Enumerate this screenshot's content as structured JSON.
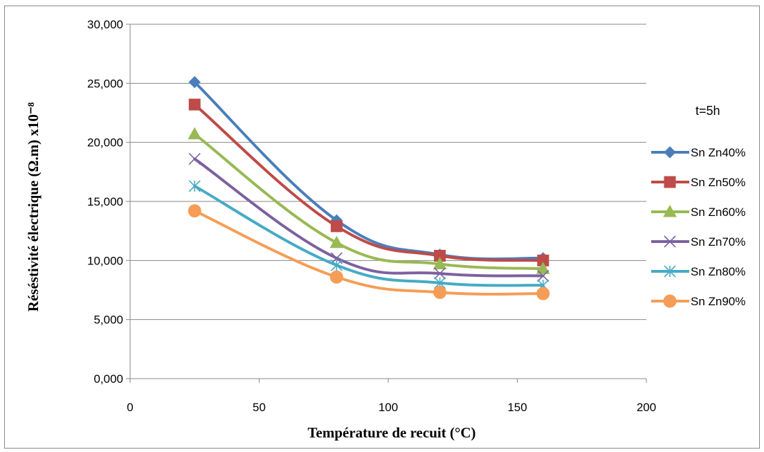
{
  "chart_data": {
    "type": "line",
    "title": "",
    "xlabel": "Température de recuit (°C)",
    "ylabel": "Réséstivité électrique (Ω.m) x10⁻⁸",
    "xlim": [
      0,
      200
    ],
    "ylim": [
      0,
      30000
    ],
    "x_ticks": [
      {
        "value": 0,
        "label": "0"
      },
      {
        "value": 50,
        "label": "50"
      },
      {
        "value": 100,
        "label": "100"
      },
      {
        "value": 150,
        "label": "150"
      },
      {
        "value": 200,
        "label": "200"
      }
    ],
    "y_ticks": [
      {
        "value": 0,
        "label": "0,000"
      },
      {
        "value": 5000,
        "label": "5,000"
      },
      {
        "value": 10000,
        "label": "10,000"
      },
      {
        "value": 15000,
        "label": "15,000"
      },
      {
        "value": 20000,
        "label": "20,000"
      },
      {
        "value": 25000,
        "label": "25,000"
      },
      {
        "value": 30000,
        "label": "30,000"
      }
    ],
    "grid": "horizontal",
    "legend_title": "t=5h",
    "legend_position": "right",
    "x": [
      25,
      80,
      120,
      160
    ],
    "series": [
      {
        "name": "Sn Zn40%",
        "color": "#4A7EBB",
        "marker": "diamond",
        "values": [
          25100,
          13400,
          10500,
          10200
        ]
      },
      {
        "name": "Sn Zn50%",
        "color": "#BE4B48",
        "marker": "square",
        "values": [
          23200,
          12900,
          10400,
          10000
        ]
      },
      {
        "name": "Sn Zn60%",
        "color": "#98B954",
        "marker": "triangle",
        "values": [
          20700,
          11500,
          9700,
          9300
        ]
      },
      {
        "name": "Sn Zn70%",
        "color": "#7D60A0",
        "marker": "x",
        "values": [
          18600,
          10200,
          8900,
          8700
        ]
      },
      {
        "name": "Sn Zn80%",
        "color": "#46AAC5",
        "marker": "star",
        "values": [
          16300,
          9600,
          8100,
          7900
        ]
      },
      {
        "name": "Sn Zn90%",
        "color": "#F59D56",
        "marker": "circle",
        "values": [
          14200,
          8600,
          7300,
          7200
        ]
      }
    ]
  }
}
